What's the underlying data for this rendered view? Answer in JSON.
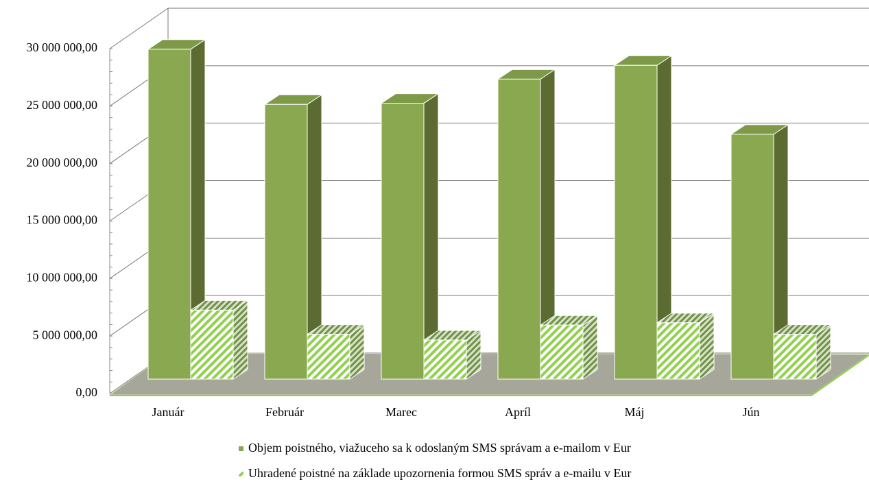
{
  "chart_data": {
    "type": "bar3d",
    "categories": [
      "Január",
      "Február",
      "Marec",
      "Apríl",
      "Máj",
      "Jún"
    ],
    "series": [
      {
        "name": "Objem poistného, viažuceho sa k odoslaným SMS správam a e-mailom v Eur",
        "color": "#8aa84f",
        "values": [
          28700000,
          23900000,
          24000000,
          26100000,
          27300000,
          21300000
        ]
      },
      {
        "name": "Uhradené poistné na základe upozornenia formou SMS správ a e-mailu v Eur",
        "color": "#92d050",
        "values": [
          6000000,
          3900000,
          3400000,
          4700000,
          4900000,
          3900000
        ]
      }
    ],
    "ylim": [
      0,
      30000000
    ],
    "yticks": [
      {
        "value": 0,
        "label": "0,00"
      },
      {
        "value": 5000000,
        "label": "5 000 000,00"
      },
      {
        "value": 10000000,
        "label": "10 000 000,00"
      },
      {
        "value": 15000000,
        "label": "15 000 000,00"
      },
      {
        "value": 20000000,
        "label": "20 000 000,00"
      },
      {
        "value": 25000000,
        "label": "25 000 000,00"
      },
      {
        "value": 30000000,
        "label": "30 000 000,00"
      }
    ],
    "grid": true
  }
}
